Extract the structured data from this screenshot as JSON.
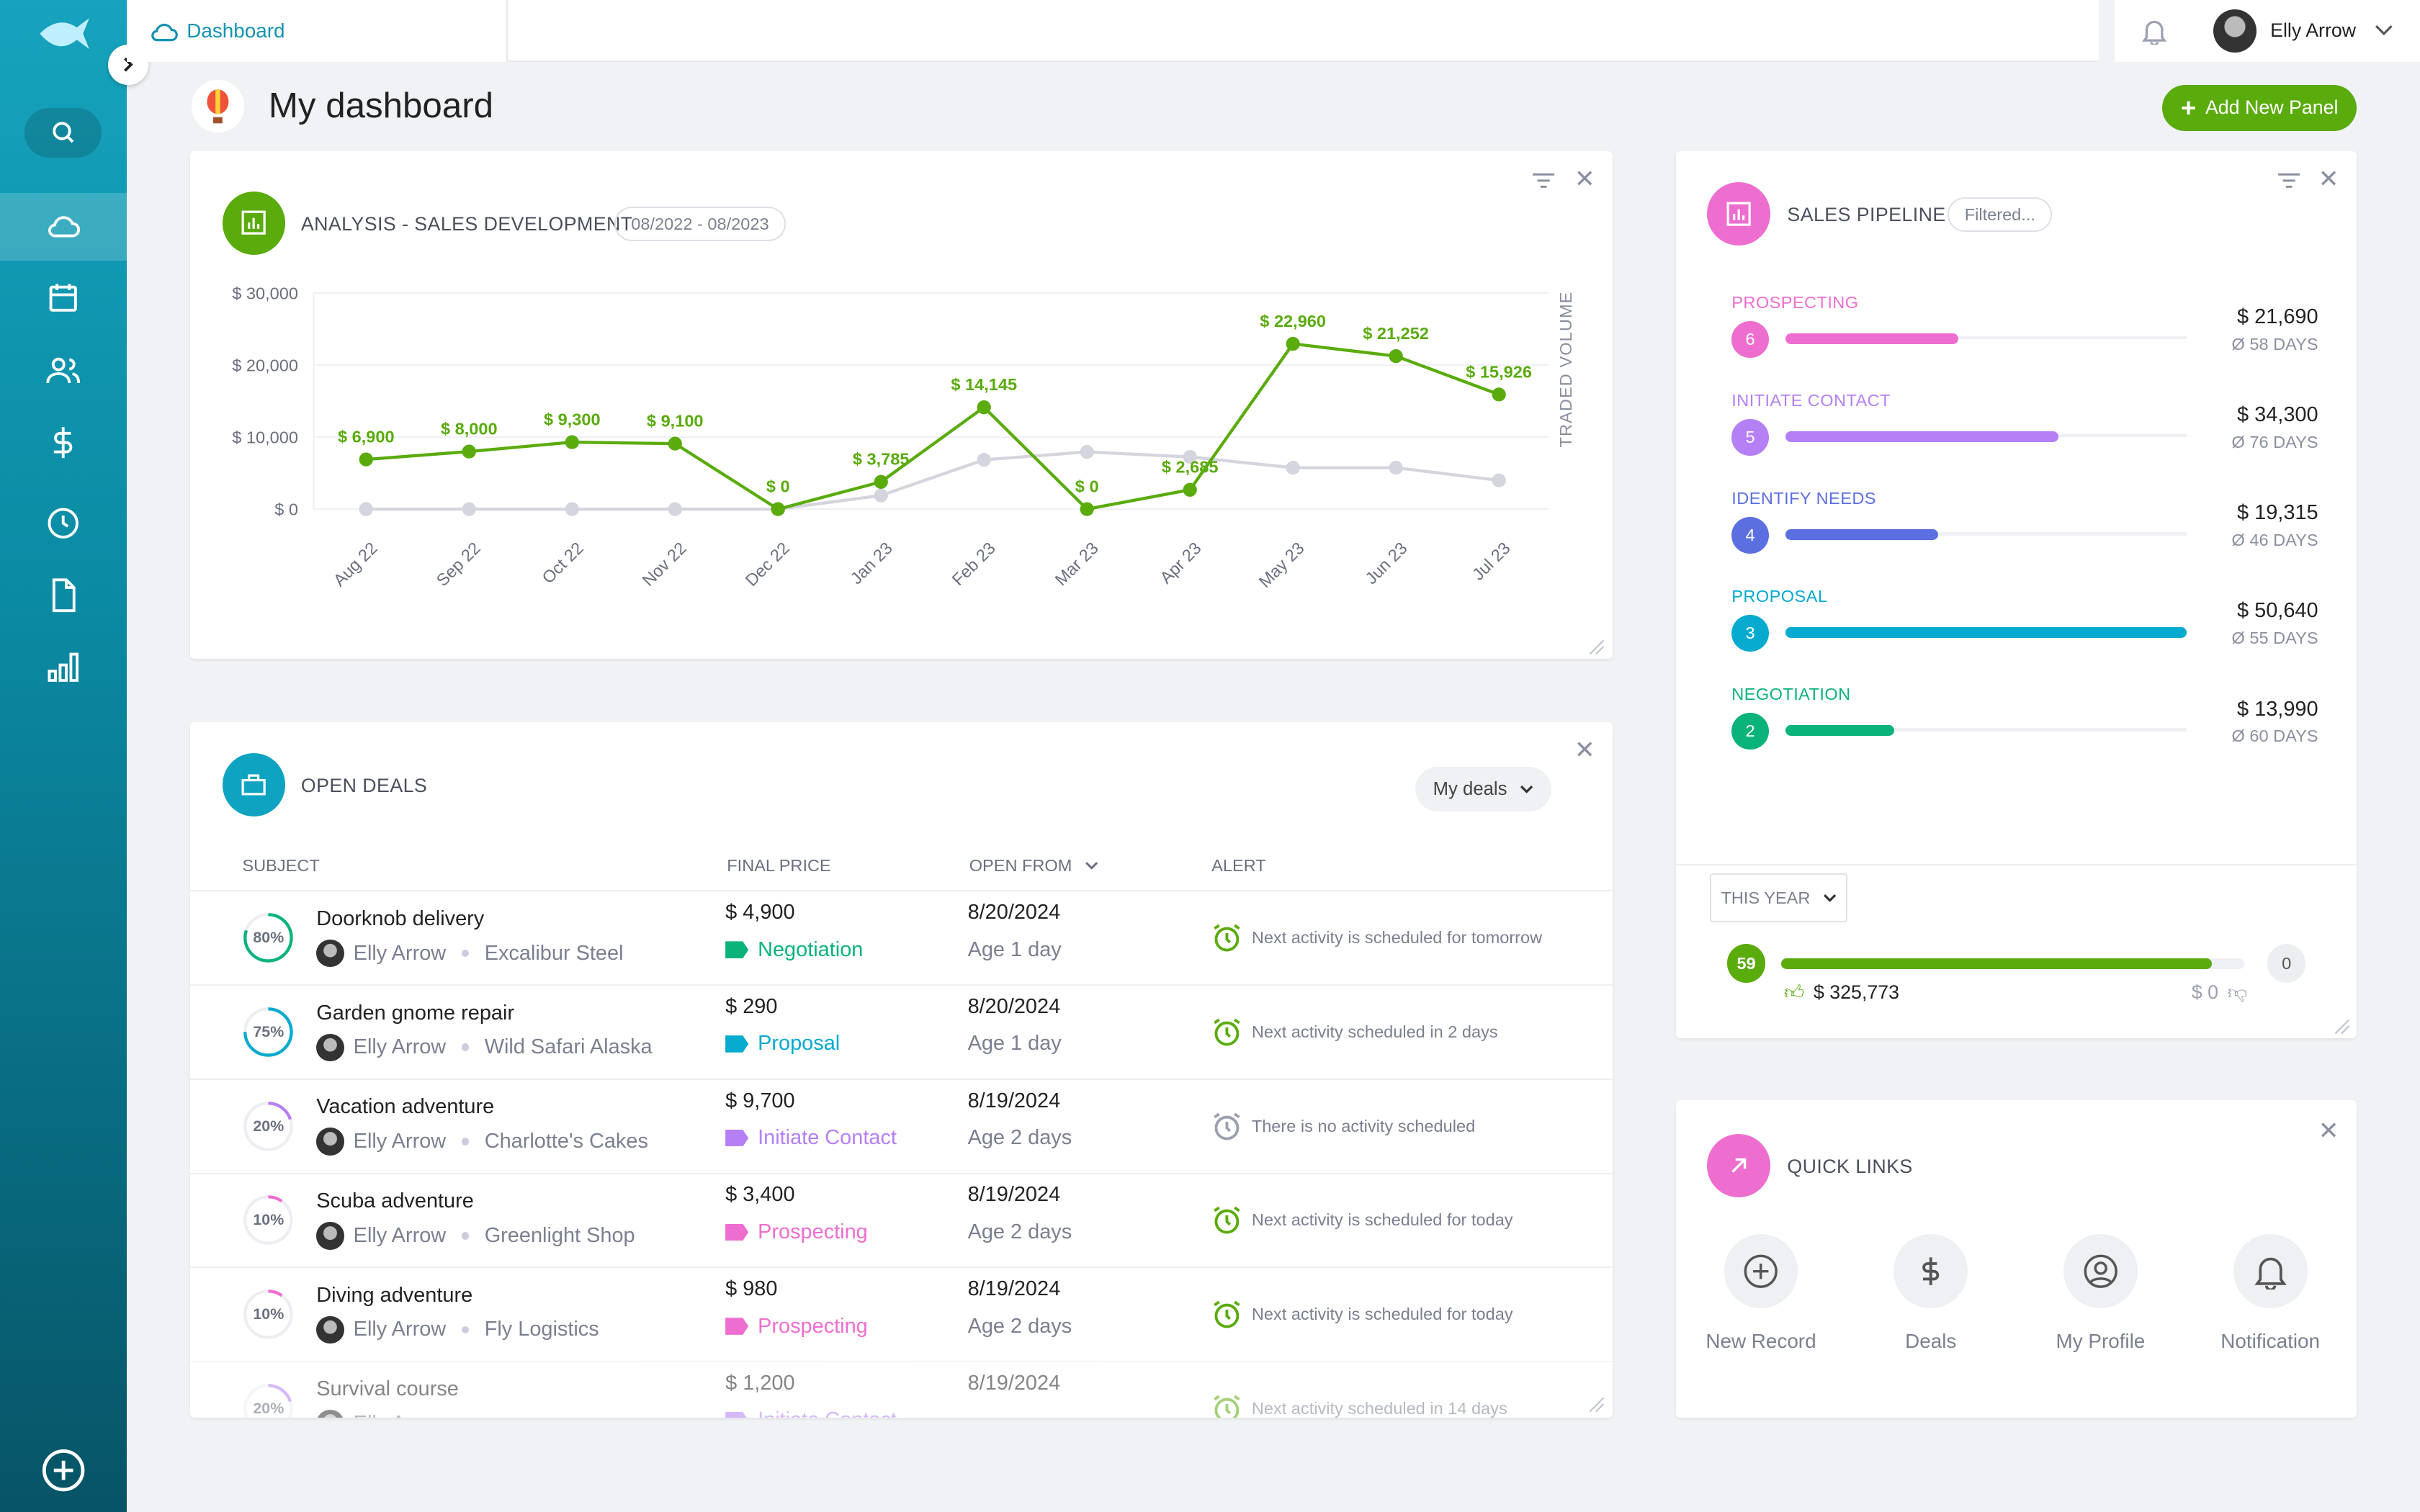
{
  "colors": {
    "accent_green": "#5aab0c",
    "teal": "#0fa3c2",
    "pink": "#ee6ecf",
    "purple": "#b57ff5",
    "blue": "#5b6fe0",
    "cyan": "#07aacf",
    "emerald": "#09b37a",
    "gray_series": "#d4d5de"
  },
  "sidebar": {
    "items": [
      {
        "icon": "search-icon"
      },
      {
        "icon": "cloud-icon",
        "active": true
      },
      {
        "icon": "calendar-icon"
      },
      {
        "icon": "users-icon"
      },
      {
        "icon": "dollar-icon"
      },
      {
        "icon": "clock-icon"
      },
      {
        "icon": "file-icon"
      },
      {
        "icon": "bar-chart-icon"
      }
    ],
    "bottom_icon": "plus-circle-icon"
  },
  "topbar": {
    "breadcrumb": "Dashboard",
    "user_name": "Elly Arrow"
  },
  "page": {
    "title": "My dashboard",
    "add_panel_label": "Add New Panel"
  },
  "analysis": {
    "title": "ANALYSIS - SALES DEVELOPMENT",
    "date_range": "08/2022 - 08/2023"
  },
  "chart_data": {
    "type": "line",
    "categories": [
      "Aug 22",
      "Sep 22",
      "Oct 22",
      "Nov 22",
      "Dec 22",
      "Jan 23",
      "Feb 23",
      "Mar 23",
      "Apr 23",
      "May 23",
      "Jun 23",
      "Jul 23"
    ],
    "series": [
      {
        "values": [
          6900,
          8000,
          9300,
          9100,
          0,
          3785,
          14145,
          0,
          2685,
          22960,
          21252,
          15926
        ],
        "labels": [
          "$ 6,900",
          "$ 8,000",
          "$ 9,300",
          "$ 9,100",
          "$ 0",
          "$ 3,785",
          "$ 14,145",
          "$ 0",
          "$ 2,685",
          "$ 22,960",
          "$ 21,252",
          "$ 15,926"
        ],
        "color": "#5aab0c"
      },
      {
        "values": [
          0,
          0,
          0,
          0,
          0,
          1900,
          6850,
          7950,
          7250,
          5750,
          5750,
          4000
        ],
        "color": "#d4d5de"
      }
    ],
    "yticks": [
      "$ 0",
      "$ 10,000",
      "$ 20,000",
      "$ 30,000"
    ],
    "ylim": [
      0,
      30000
    ],
    "y2label": "TRADED VOLUME",
    "grid": true
  },
  "deals": {
    "title": "OPEN DEALS",
    "filter": "My deals",
    "columns": [
      "SUBJECT",
      "FINAL PRICE",
      "OPEN FROM",
      "ALERT"
    ],
    "rows": [
      {
        "pct": "80%",
        "p": 80,
        "color": "#09b37a",
        "subject": "Doorknob delivery",
        "owner": "Elly Arrow",
        "company": "Excalibur Steel",
        "price": "$ 4,900",
        "stage": "Negotiation",
        "stage_color": "#09b37a",
        "date": "8/20/2024",
        "age": "Age 1 day",
        "alert": "Next activity is scheduled for tomorrow",
        "alert_color": "#5aab0c"
      },
      {
        "pct": "75%",
        "p": 75,
        "color": "#07aacf",
        "subject": "Garden gnome repair",
        "owner": "Elly Arrow",
        "company": "Wild Safari Alaska",
        "price": "$ 290",
        "stage": "Proposal",
        "stage_color": "#07aacf",
        "date": "8/20/2024",
        "age": "Age 1 day",
        "alert": "Next activity scheduled in 2 days",
        "alert_color": "#5aab0c"
      },
      {
        "pct": "20%",
        "p": 20,
        "color": "#b57ff5",
        "subject": "Vacation adventure",
        "owner": "Elly Arrow",
        "company": "Charlotte's Cakes",
        "price": "$ 9,700",
        "stage": "Initiate Contact",
        "stage_color": "#b57ff5",
        "date": "8/19/2024",
        "age": "Age 2 days",
        "alert": "There is no activity scheduled",
        "alert_color": "#9aa0ae"
      },
      {
        "pct": "10%",
        "p": 10,
        "color": "#ee6ecf",
        "subject": "Scuba adventure",
        "owner": "Elly Arrow",
        "company": "Greenlight Shop",
        "price": "$ 3,400",
        "stage": "Prospecting",
        "stage_color": "#ee6ecf",
        "date": "8/19/2024",
        "age": "Age 2 days",
        "alert": "Next activity is scheduled for today",
        "alert_color": "#5aab0c"
      },
      {
        "pct": "10%",
        "p": 10,
        "color": "#ee6ecf",
        "subject": "Diving adventure",
        "owner": "Elly Arrow",
        "company": "Fly Logistics",
        "price": "$ 980",
        "stage": "Prospecting",
        "stage_color": "#ee6ecf",
        "date": "8/19/2024",
        "age": "Age 2 days",
        "alert": "Next activity is scheduled for today",
        "alert_color": "#5aab0c"
      },
      {
        "pct": "20%",
        "p": 20,
        "color": "#b57ff5",
        "subject": "Survival course",
        "owner": "Elly Arrow",
        "company": "",
        "price": "$ 1,200",
        "stage": "Initiate Contact",
        "stage_color": "#b57ff5",
        "date": "8/19/2024",
        "age": "",
        "alert": "Next activity scheduled in 14 days",
        "alert_color": "#5aab0c"
      }
    ]
  },
  "pipeline": {
    "title": "SALES PIPELINE",
    "filter": "Filtered...",
    "stages": [
      {
        "name": "PROSPECTING",
        "count": "6",
        "amount": "$ 21,690",
        "days": "Ø 58 DAYS",
        "color": "#ee6ecf",
        "fill": 0.43
      },
      {
        "name": "INITIATE CONTACT",
        "count": "5",
        "amount": "$ 34,300",
        "days": "Ø 76 DAYS",
        "color": "#b57ff5",
        "fill": 0.68
      },
      {
        "name": "IDENTIFY NEEDS",
        "count": "4",
        "amount": "$ 19,315",
        "days": "Ø 46 DAYS",
        "color": "#5b6fe0",
        "fill": 0.38
      },
      {
        "name": "PROPOSAL",
        "count": "3",
        "amount": "$ 50,640",
        "days": "Ø 55 DAYS",
        "color": "#07aacf",
        "fill": 1.0
      },
      {
        "name": "NEGOTIATION",
        "count": "2",
        "amount": "$ 13,990",
        "days": "Ø 60 DAYS",
        "color": "#09b37a",
        "fill": 0.27
      }
    ],
    "period": "THIS YEAR",
    "won_count": "59",
    "lost_count": "0",
    "won_amount": "$ 325,773",
    "lost_amount": "$ 0",
    "won_fraction": 1.0
  },
  "quick_links": {
    "title": "QUICK LINKS",
    "items": [
      {
        "label": "New Record",
        "icon": "plus-circle-icon"
      },
      {
        "label": "Deals",
        "icon": "dollar-icon"
      },
      {
        "label": "My Profile",
        "icon": "user-circle-icon"
      },
      {
        "label": "Notification",
        "icon": "bell-icon"
      }
    ]
  }
}
